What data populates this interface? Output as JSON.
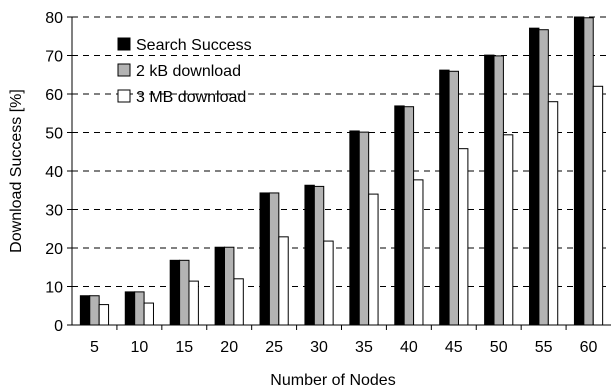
{
  "chart_data": {
    "type": "bar",
    "xlabel": "Number of Nodes",
    "ylabel": "Download Success [%]",
    "ylim": [
      0,
      80
    ],
    "yticks": [
      0,
      10,
      20,
      30,
      40,
      50,
      60,
      70,
      80
    ],
    "grid": "horizontal dashed",
    "legend_position": "top-left",
    "categories": [
      "5",
      "10",
      "15",
      "20",
      "25",
      "30",
      "35",
      "40",
      "45",
      "50",
      "55",
      "60"
    ],
    "series": [
      {
        "name": "Search Success",
        "color": "#000000",
        "values": [
          7.6,
          8.6,
          16.8,
          20.2,
          34.3,
          36.3,
          50.4,
          56.9,
          66.2,
          70.1,
          77.1,
          80
        ]
      },
      {
        "name": "2 kB download",
        "color": "#b3b3b3",
        "values": [
          7.6,
          8.6,
          16.8,
          20.2,
          34.3,
          36.0,
          50.1,
          56.7,
          65.9,
          69.9,
          76.7,
          79.8
        ]
      },
      {
        "name": "3 MB download",
        "color": "#ffffff",
        "values": [
          5.3,
          5.7,
          11.4,
          12.0,
          22.9,
          21.8,
          34.0,
          37.7,
          45.8,
          49.4,
          58.0,
          62.0
        ]
      }
    ]
  }
}
